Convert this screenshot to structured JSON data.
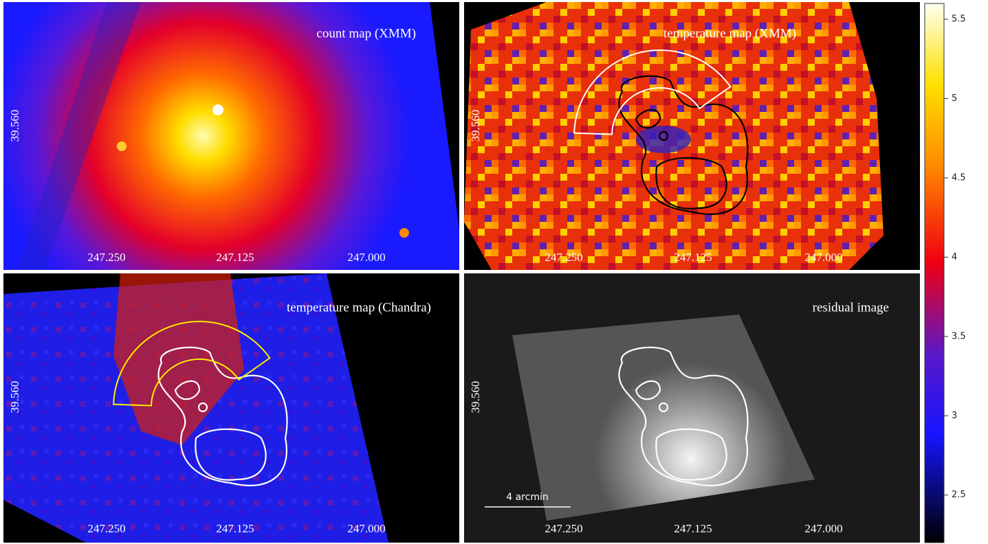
{
  "panels": [
    {
      "title": "count map (XMM)",
      "xtick_labels": [
        "247.250",
        "247.125",
        "247.000"
      ],
      "ytick_label": "39.560"
    },
    {
      "title": "temperature map (XMM)",
      "xtick_labels": [
        "247.250",
        "247.125",
        "247.000"
      ],
      "ytick_label": "39.560"
    },
    {
      "title": "temperature map (Chandra)",
      "xtick_labels": [
        "247.250",
        "247.125",
        "247.000"
      ],
      "ytick_label": "39.560"
    },
    {
      "title": "residual image",
      "xtick_labels": [
        "247.250",
        "247.125",
        "247.000"
      ],
      "ytick_label": "39.560"
    }
  ],
  "scale_bar": "4 arcmin",
  "colorbar": {
    "lim": [
      2.2,
      5.6
    ],
    "ticks": [
      2.5,
      3,
      3.5,
      4,
      4.5,
      5,
      5.5
    ]
  }
}
